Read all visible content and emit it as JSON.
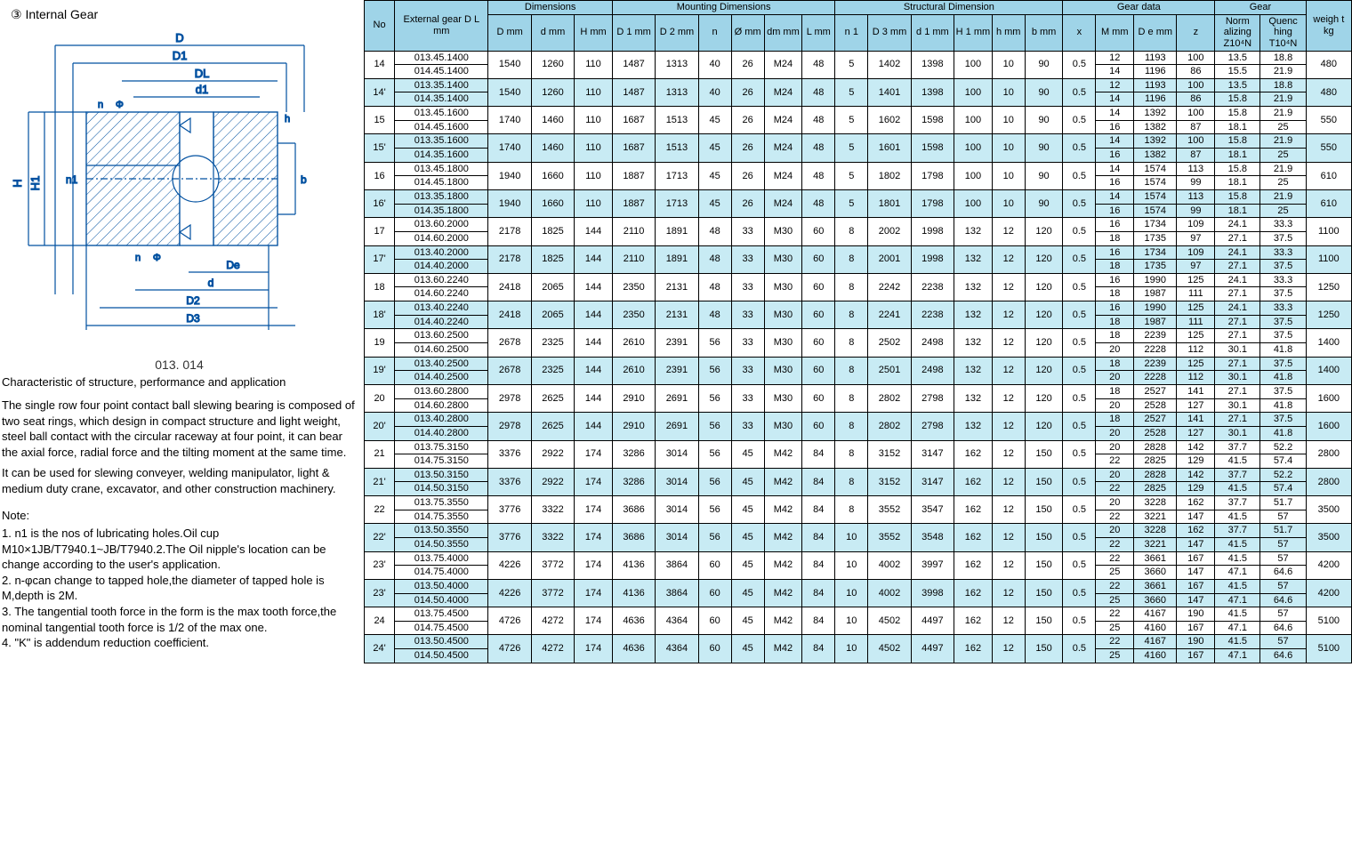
{
  "left": {
    "section_title": "③  Internal Gear",
    "model_no": "013. 014",
    "desc_title": "Characteristic of structure, performance and application",
    "desc_paragraphs": [
      "The single row four point contact ball slewing bearing is composed of two seat rings, which design in compact structure and light weight, steel ball contact with the circular raceway at four point, it can bear the axial force, radial force and the tilting moment at the same time.",
      "It can be used for slewing conveyer, welding manipulator, light & medium duty crane, excavator, and other construction machinery."
    ],
    "note_title": "Note:",
    "notes": [
      "1. n1 is the nos of lubricating holes.Oil cup M10×1JB/T7940.1~JB/T7940.2.The Oil nipple's   location can be change according to the user's application.",
      "2. n-φcan change to tapped hole,the diameter of tapped hole is M,depth is 2M.",
      "3. The tangential tooth force in the form is the max tooth force,the nominal tangential   tooth force is 1/2 of the max one.",
      "4. \"K\" is addendum reduction coefficient."
    ],
    "diagram_labels": {
      "D": "D",
      "D1": "D1",
      "DL": "DL",
      "d1": "d1",
      "De": "De",
      "d": "d",
      "D2": "D2",
      "D3": "D3",
      "H": "H",
      "H1": "H1",
      "n1": "n1",
      "n": "n",
      "phi": "Φ",
      "b": "b",
      "h": "h"
    },
    "diagram_colors": {
      "line": "#0050a0",
      "fill": "#ffffff",
      "hatch": "#0050a0"
    }
  },
  "table": {
    "header_bg": "#9fd4e8",
    "alt_row_bg": "#c8ebf4",
    "groups": [
      {
        "label": "Dimensions",
        "span": 3
      },
      {
        "label": "Mounting Dimensions",
        "span": 6
      },
      {
        "label": "Structural Dimension",
        "span": 6
      },
      {
        "label": "Gear data",
        "span": 4
      },
      {
        "label": "Gear",
        "span": 2
      }
    ],
    "head": {
      "no": "No",
      "ext": "External gear D L mm",
      "D": "D mm",
      "d": "d mm",
      "H": "H mm",
      "D1": "D 1 mm",
      "D2": "D 2 mm",
      "n_m": "n",
      "phi": "Ø mm",
      "dm": "dm mm",
      "L": "L mm",
      "n1": "n 1",
      "D3": "D 3 mm",
      "d1s": "d 1 mm",
      "H1": "H 1 mm",
      "hs": "h mm",
      "bs": "b mm",
      "x": "x",
      "M": "M mm",
      "Dee": "D e mm",
      "z": "z",
      "norm": "Norm alizing Z10⁴N",
      "quench": "Quenc hing T10⁴N",
      "wt": "weigh t kg"
    },
    "rows": [
      {
        "no": "14",
        "alt": false,
        "ext": [
          "013.45.1400",
          "014.45.1400"
        ],
        "shared": [
          "1540",
          "1260",
          "110",
          "1487",
          "1313",
          "40",
          "26",
          "M24",
          "48",
          "5",
          "1402",
          "1398",
          "100",
          "10",
          "90",
          "0.5"
        ],
        "sub": [
          [
            "12",
            "1193",
            "100",
            "13.5",
            "18.8"
          ],
          [
            "14",
            "1196",
            "86",
            "15.5",
            "21.9"
          ]
        ],
        "wt": "480"
      },
      {
        "no": "14'",
        "alt": true,
        "ext": [
          "013.35.1400",
          "014.35.1400"
        ],
        "shared": [
          "1540",
          "1260",
          "110",
          "1487",
          "1313",
          "40",
          "26",
          "M24",
          "48",
          "5",
          "1401",
          "1398",
          "100",
          "10",
          "90",
          "0.5"
        ],
        "sub": [
          [
            "12",
            "1193",
            "100",
            "13.5",
            "18.8"
          ],
          [
            "14",
            "1196",
            "86",
            "15.8",
            "21.9"
          ]
        ],
        "wt": "480"
      },
      {
        "no": "15",
        "alt": false,
        "ext": [
          "013.45.1600",
          "014.45.1600"
        ],
        "shared": [
          "1740",
          "1460",
          "110",
          "1687",
          "1513",
          "45",
          "26",
          "M24",
          "48",
          "5",
          "1602",
          "1598",
          "100",
          "10",
          "90",
          "0.5"
        ],
        "sub": [
          [
            "14",
            "1392",
            "100",
            "15.8",
            "21.9"
          ],
          [
            "16",
            "1382",
            "87",
            "18.1",
            "25"
          ]
        ],
        "wt": "550"
      },
      {
        "no": "15'",
        "alt": true,
        "ext": [
          "013.35.1600",
          "014.35.1600"
        ],
        "shared": [
          "1740",
          "1460",
          "110",
          "1687",
          "1513",
          "45",
          "26",
          "M24",
          "48",
          "5",
          "1601",
          "1598",
          "100",
          "10",
          "90",
          "0.5"
        ],
        "sub": [
          [
            "14",
            "1392",
            "100",
            "15.8",
            "21.9"
          ],
          [
            "16",
            "1382",
            "87",
            "18.1",
            "25"
          ]
        ],
        "wt": "550"
      },
      {
        "no": "16",
        "alt": false,
        "ext": [
          "013.45.1800",
          "014.45.1800"
        ],
        "shared": [
          "1940",
          "1660",
          "110",
          "1887",
          "1713",
          "45",
          "26",
          "M24",
          "48",
          "5",
          "1802",
          "1798",
          "100",
          "10",
          "90",
          "0.5"
        ],
        "sub": [
          [
            "14",
            "1574",
            "113",
            "15.8",
            "21.9"
          ],
          [
            "16",
            "1574",
            "99",
            "18.1",
            "25"
          ]
        ],
        "wt": "610"
      },
      {
        "no": "16'",
        "alt": true,
        "ext": [
          "013.35.1800",
          "014.35.1800"
        ],
        "shared": [
          "1940",
          "1660",
          "110",
          "1887",
          "1713",
          "45",
          "26",
          "M24",
          "48",
          "5",
          "1801",
          "1798",
          "100",
          "10",
          "90",
          "0.5"
        ],
        "sub": [
          [
            "14",
            "1574",
            "113",
            "15.8",
            "21.9"
          ],
          [
            "16",
            "1574",
            "99",
            "18.1",
            "25"
          ]
        ],
        "wt": "610"
      },
      {
        "no": "17",
        "alt": false,
        "ext": [
          "013.60.2000",
          "014.60.2000"
        ],
        "shared": [
          "2178",
          "1825",
          "144",
          "2110",
          "1891",
          "48",
          "33",
          "M30",
          "60",
          "8",
          "2002",
          "1998",
          "132",
          "12",
          "120",
          "0.5"
        ],
        "sub": [
          [
            "16",
            "1734",
            "109",
            "24.1",
            "33.3"
          ],
          [
            "18",
            "1735",
            "97",
            "27.1",
            "37.5"
          ]
        ],
        "wt": "1100"
      },
      {
        "no": "17'",
        "alt": true,
        "ext": [
          "013.40.2000",
          "014.40.2000"
        ],
        "shared": [
          "2178",
          "1825",
          "144",
          "2110",
          "1891",
          "48",
          "33",
          "M30",
          "60",
          "8",
          "2001",
          "1998",
          "132",
          "12",
          "120",
          "0.5"
        ],
        "sub": [
          [
            "16",
            "1734",
            "109",
            "24.1",
            "33.3"
          ],
          [
            "18",
            "1735",
            "97",
            "27.1",
            "37.5"
          ]
        ],
        "wt": "1100"
      },
      {
        "no": "18",
        "alt": false,
        "ext": [
          "013.60.2240",
          "014.60.2240"
        ],
        "shared": [
          "2418",
          "2065",
          "144",
          "2350",
          "2131",
          "48",
          "33",
          "M30",
          "60",
          "8",
          "2242",
          "2238",
          "132",
          "12",
          "120",
          "0.5"
        ],
        "sub": [
          [
            "16",
            "1990",
            "125",
            "24.1",
            "33.3"
          ],
          [
            "18",
            "1987",
            "111",
            "27.1",
            "37.5"
          ]
        ],
        "wt": "1250"
      },
      {
        "no": "18'",
        "alt": true,
        "ext": [
          "013.40.2240",
          "014.40.2240"
        ],
        "shared": [
          "2418",
          "2065",
          "144",
          "2350",
          "2131",
          "48",
          "33",
          "M30",
          "60",
          "8",
          "2241",
          "2238",
          "132",
          "12",
          "120",
          "0.5"
        ],
        "sub": [
          [
            "16",
            "1990",
            "125",
            "24.1",
            "33.3"
          ],
          [
            "18",
            "1987",
            "111",
            "27.1",
            "37.5"
          ]
        ],
        "wt": "1250"
      },
      {
        "no": "19",
        "alt": false,
        "ext": [
          "013.60.2500",
          "014.60.2500"
        ],
        "shared": [
          "2678",
          "2325",
          "144",
          "2610",
          "2391",
          "56",
          "33",
          "M30",
          "60",
          "8",
          "2502",
          "2498",
          "132",
          "12",
          "120",
          "0.5"
        ],
        "sub": [
          [
            "18",
            "2239",
            "125",
            "27.1",
            "37.5"
          ],
          [
            "20",
            "2228",
            "112",
            "30.1",
            "41.8"
          ]
        ],
        "wt": "1400"
      },
      {
        "no": "19'",
        "alt": true,
        "ext": [
          "013.40.2500",
          "014.40.2500"
        ],
        "shared": [
          "2678",
          "2325",
          "144",
          "2610",
          "2391",
          "56",
          "33",
          "M30",
          "60",
          "8",
          "2501",
          "2498",
          "132",
          "12",
          "120",
          "0.5"
        ],
        "sub": [
          [
            "18",
            "2239",
            "125",
            "27.1",
            "37.5"
          ],
          [
            "20",
            "2228",
            "112",
            "30.1",
            "41.8"
          ]
        ],
        "wt": "1400"
      },
      {
        "no": "20",
        "alt": false,
        "ext": [
          "013.60.2800",
          "014.60.2800"
        ],
        "shared": [
          "2978",
          "2625",
          "144",
          "2910",
          "2691",
          "56",
          "33",
          "M30",
          "60",
          "8",
          "2802",
          "2798",
          "132",
          "12",
          "120",
          "0.5"
        ],
        "sub": [
          [
            "18",
            "2527",
            "141",
            "27.1",
            "37.5"
          ],
          [
            "20",
            "2528",
            "127",
            "30.1",
            "41.8"
          ]
        ],
        "wt": "1600"
      },
      {
        "no": "20'",
        "alt": true,
        "ext": [
          "013.40.2800",
          "014.40.2800"
        ],
        "shared": [
          "2978",
          "2625",
          "144",
          "2910",
          "2691",
          "56",
          "33",
          "M30",
          "60",
          "8",
          "2802",
          "2798",
          "132",
          "12",
          "120",
          "0.5"
        ],
        "sub": [
          [
            "18",
            "2527",
            "141",
            "27.1",
            "37.5"
          ],
          [
            "20",
            "2528",
            "127",
            "30.1",
            "41.8"
          ]
        ],
        "wt": "1600"
      },
      {
        "no": "21",
        "alt": false,
        "ext": [
          "013.75.3150",
          "014.75.3150"
        ],
        "shared": [
          "3376",
          "2922",
          "174",
          "3286",
          "3014",
          "56",
          "45",
          "M42",
          "84",
          "8",
          "3152",
          "3147",
          "162",
          "12",
          "150",
          "0.5"
        ],
        "sub": [
          [
            "20",
            "2828",
            "142",
            "37.7",
            "52.2"
          ],
          [
            "22",
            "2825",
            "129",
            "41.5",
            "57.4"
          ]
        ],
        "wt": "2800"
      },
      {
        "no": "21'",
        "alt": true,
        "ext": [
          "013.50.3150",
          "014.50.3150"
        ],
        "shared": [
          "3376",
          "2922",
          "174",
          "3286",
          "3014",
          "56",
          "45",
          "M42",
          "84",
          "8",
          "3152",
          "3147",
          "162",
          "12",
          "150",
          "0.5"
        ],
        "sub": [
          [
            "20",
            "2828",
            "142",
            "37.7",
            "52.2"
          ],
          [
            "22",
            "2825",
            "129",
            "41.5",
            "57.4"
          ]
        ],
        "wt": "2800"
      },
      {
        "no": "22",
        "alt": false,
        "ext": [
          "013.75.3550",
          "014.75.3550"
        ],
        "shared": [
          "3776",
          "3322",
          "174",
          "3686",
          "3014",
          "56",
          "45",
          "M42",
          "84",
          "8",
          "3552",
          "3547",
          "162",
          "12",
          "150",
          "0.5"
        ],
        "sub": [
          [
            "20",
            "3228",
            "162",
            "37.7",
            "51.7"
          ],
          [
            "22",
            "3221",
            "147",
            "41.5",
            "57"
          ]
        ],
        "wt": "3500"
      },
      {
        "no": "22'",
        "alt": true,
        "ext": [
          "013.50.3550",
          "014.50.3550"
        ],
        "shared": [
          "3776",
          "3322",
          "174",
          "3686",
          "3014",
          "56",
          "45",
          "M42",
          "84",
          "10",
          "3552",
          "3548",
          "162",
          "12",
          "150",
          "0.5"
        ],
        "sub": [
          [
            "20",
            "3228",
            "162",
            "37.7",
            "51.7"
          ],
          [
            "22",
            "3221",
            "147",
            "41.5",
            "57"
          ]
        ],
        "wt": "3500"
      },
      {
        "no": "23'",
        "alt": false,
        "ext": [
          "013.75.4000",
          "014.75.4000"
        ],
        "shared": [
          "4226",
          "3772",
          "174",
          "4136",
          "3864",
          "60",
          "45",
          "M42",
          "84",
          "10",
          "4002",
          "3997",
          "162",
          "12",
          "150",
          "0.5"
        ],
        "sub": [
          [
            "22",
            "3661",
            "167",
            "41.5",
            "57"
          ],
          [
            "25",
            "3660",
            "147",
            "47.1",
            "64.6"
          ]
        ],
        "wt": "4200"
      },
      {
        "no": "23'",
        "alt": true,
        "ext": [
          "013.50.4000",
          "014.50.4000"
        ],
        "shared": [
          "4226",
          "3772",
          "174",
          "4136",
          "3864",
          "60",
          "45",
          "M42",
          "84",
          "10",
          "4002",
          "3998",
          "162",
          "12",
          "150",
          "0.5"
        ],
        "sub": [
          [
            "22",
            "3661",
            "167",
            "41.5",
            "57"
          ],
          [
            "25",
            "3660",
            "147",
            "47.1",
            "64.6"
          ]
        ],
        "wt": "4200"
      },
      {
        "no": "24",
        "alt": false,
        "ext": [
          "013.75.4500",
          "014.75.4500"
        ],
        "shared": [
          "4726",
          "4272",
          "174",
          "4636",
          "4364",
          "60",
          "45",
          "M42",
          "84",
          "10",
          "4502",
          "4497",
          "162",
          "12",
          "150",
          "0.5"
        ],
        "sub": [
          [
            "22",
            "4167",
            "190",
            "41.5",
            "57"
          ],
          [
            "25",
            "4160",
            "167",
            "47.1",
            "64.6"
          ]
        ],
        "wt": "5100"
      },
      {
        "no": "24'",
        "alt": true,
        "ext": [
          "013.50.4500",
          "014.50.4500"
        ],
        "shared": [
          "4726",
          "4272",
          "174",
          "4636",
          "4364",
          "60",
          "45",
          "M42",
          "84",
          "10",
          "4502",
          "4497",
          "162",
          "12",
          "150",
          "0.5"
        ],
        "sub": [
          [
            "22",
            "4167",
            "190",
            "41.5",
            "57"
          ],
          [
            "25",
            "4160",
            "167",
            "47.1",
            "64.6"
          ]
        ],
        "wt": "5100"
      }
    ]
  }
}
